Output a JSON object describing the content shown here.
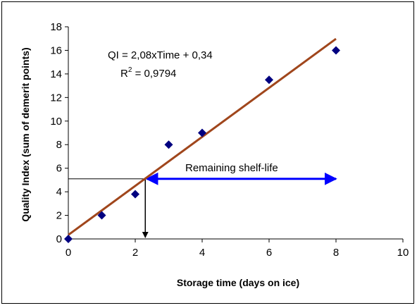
{
  "chart_data": {
    "type": "scatter",
    "xlabel": "Storage time (days on ice)",
    "ylabel": "Quality Index (sum of demerit points)",
    "xlim": [
      0,
      10
    ],
    "ylim": [
      0,
      18
    ],
    "x_ticks": [
      0,
      2,
      4,
      6,
      8,
      10
    ],
    "y_ticks": [
      0,
      2,
      4,
      6,
      8,
      10,
      12,
      14,
      16,
      18
    ],
    "grid": false,
    "series": [
      {
        "points": [
          {
            "x": 0,
            "y": 0
          },
          {
            "x": 1,
            "y": 2
          },
          {
            "x": 2,
            "y": 3.8
          },
          {
            "x": 3,
            "y": 8
          },
          {
            "x": 4,
            "y": 9
          },
          {
            "x": 6,
            "y": 13.5
          },
          {
            "x": 8,
            "y": 16
          }
        ],
        "color": "#000080",
        "marker": "diamond"
      }
    ],
    "trendline": {
      "slope": 2.08,
      "intercept": 0.34,
      "x_range": [
        0,
        8
      ],
      "color": "#a0461c"
    },
    "annotations": {
      "equation_line1": "QI = 2,08xTime + 0,34",
      "equation_r_prefix": "R",
      "equation_r_sup": "2",
      "equation_r_value": " = 0,9794",
      "shelf_life_label": "Remaining shelf-life",
      "shelf_life_arrow": {
        "x_start": 2.3,
        "x_end": 8,
        "y": 5.1,
        "color": "#0000ff"
      },
      "reference_point": {
        "x": 2.3,
        "y": 5.1,
        "color": "#000000"
      }
    }
  }
}
